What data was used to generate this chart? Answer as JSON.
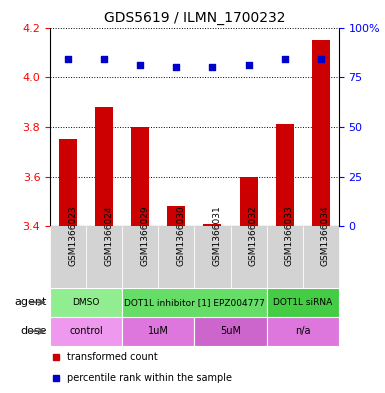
{
  "title": "GDS5619 / ILMN_1700232",
  "samples": [
    "GSM1366023",
    "GSM1366024",
    "GSM1366029",
    "GSM1366030",
    "GSM1366031",
    "GSM1366032",
    "GSM1366033",
    "GSM1366034"
  ],
  "bar_values": [
    3.75,
    3.88,
    3.8,
    3.48,
    3.41,
    3.6,
    3.81,
    4.15
  ],
  "dot_values": [
    84,
    84,
    81,
    80,
    80,
    81,
    84,
    84
  ],
  "ylim_left": [
    3.4,
    4.2
  ],
  "ylim_right": [
    0,
    100
  ],
  "yticks_left": [
    3.4,
    3.6,
    3.8,
    4.0,
    4.2
  ],
  "yticks_right": [
    0,
    25,
    50,
    75,
    100
  ],
  "bar_color": "#cc0000",
  "dot_color": "#0000cc",
  "grid_color": "#000000",
  "agent_groups": [
    {
      "label": "DMSO",
      "span": [
        0,
        2
      ],
      "color": "#90EE90"
    },
    {
      "label": "DOT1L inhibitor [1] EPZ004777",
      "span": [
        2,
        6
      ],
      "color": "#66DD66"
    },
    {
      "label": "DOT1L siRNA",
      "span": [
        6,
        8
      ],
      "color": "#44CC44"
    }
  ],
  "dose_groups": [
    {
      "label": "control",
      "span": [
        0,
        2
      ],
      "color": "#EE99EE"
    },
    {
      "label": "1uM",
      "span": [
        2,
        4
      ],
      "color": "#DD77DD"
    },
    {
      "label": "5uM",
      "span": [
        4,
        6
      ],
      "color": "#CC66CC"
    },
    {
      "label": "n/a",
      "span": [
        6,
        8
      ],
      "color": "#DD77DD"
    }
  ],
  "legend_items": [
    {
      "label": "transformed count",
      "color": "#cc0000"
    },
    {
      "label": "percentile rank within the sample",
      "color": "#0000cc"
    }
  ],
  "agent_label": "agent",
  "dose_label": "dose",
  "arrow_color": "#555555"
}
